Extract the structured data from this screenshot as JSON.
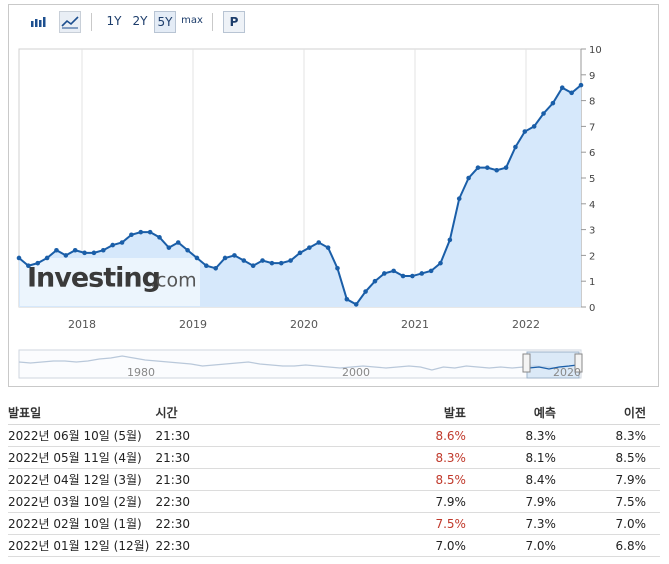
{
  "toolbar": {
    "range_buttons": [
      "1Y",
      "2Y",
      "5Y",
      "max"
    ],
    "active_range": "5Y",
    "p_label": "P",
    "icons": [
      "bar-chart-icon",
      "line-chart-icon"
    ]
  },
  "watermark": {
    "brand": "Investing",
    "suffix": ".com"
  },
  "chart_data": {
    "type": "area",
    "x_ticks": [
      "2018",
      "2019",
      "2020",
      "2021",
      "2022"
    ],
    "y_ticks": [
      "0",
      "1",
      "2",
      "3",
      "4",
      "5",
      "6",
      "7",
      "8",
      "9",
      "10"
    ],
    "ylim": [
      0,
      10
    ],
    "grid": "vertical",
    "colors": {
      "line": "#1a5ea8",
      "fill": "#d6e8fb"
    },
    "values": [
      1.9,
      1.6,
      1.7,
      1.9,
      2.2,
      2.0,
      2.2,
      2.1,
      2.1,
      2.2,
      2.4,
      2.5,
      2.8,
      2.9,
      2.9,
      2.7,
      2.3,
      2.5,
      2.2,
      1.9,
      1.6,
      1.5,
      1.9,
      2.0,
      1.8,
      1.6,
      1.8,
      1.7,
      1.7,
      1.8,
      2.1,
      2.3,
      2.5,
      2.3,
      1.5,
      0.3,
      0.1,
      0.6,
      1.0,
      1.3,
      1.4,
      1.2,
      1.2,
      1.3,
      1.4,
      1.7,
      2.6,
      4.2,
      5.0,
      5.4,
      5.4,
      5.3,
      5.4,
      6.2,
      6.8,
      7.0,
      7.5,
      7.9,
      8.5,
      8.3,
      8.6
    ]
  },
  "navigator": {
    "labels": [
      "1980",
      "2000",
      "2020"
    ]
  },
  "table": {
    "headers": {
      "date": "발표일",
      "time": "시간",
      "actual": "발표",
      "forecast": "예측",
      "previous": "이전"
    },
    "rows": [
      {
        "date": "2022년 06월 10일 (5월)",
        "time": "21:30",
        "actual": "8.6%",
        "actual_color": "#c0392b",
        "forecast": "8.3%",
        "previous": "8.3%"
      },
      {
        "date": "2022년 05월 11일 (4월)",
        "time": "21:30",
        "actual": "8.3%",
        "actual_color": "#c0392b",
        "forecast": "8.1%",
        "previous": "8.5%"
      },
      {
        "date": "2022년 04월 12일 (3월)",
        "time": "21:30",
        "actual": "8.5%",
        "actual_color": "#c0392b",
        "forecast": "8.4%",
        "previous": "7.9%"
      },
      {
        "date": "2022년 03월 10일 (2월)",
        "time": "22:30",
        "actual": "7.9%",
        "actual_color": "#222222",
        "forecast": "7.9%",
        "previous": "7.5%"
      },
      {
        "date": "2022년 02월 10일 (1월)",
        "time": "22:30",
        "actual": "7.5%",
        "actual_color": "#c0392b",
        "forecast": "7.3%",
        "previous": "7.0%"
      },
      {
        "date": "2022년 01월 12일 (12월)",
        "time": "22:30",
        "actual": "7.0%",
        "actual_color": "#222222",
        "forecast": "7.0%",
        "previous": "6.8%"
      }
    ]
  }
}
